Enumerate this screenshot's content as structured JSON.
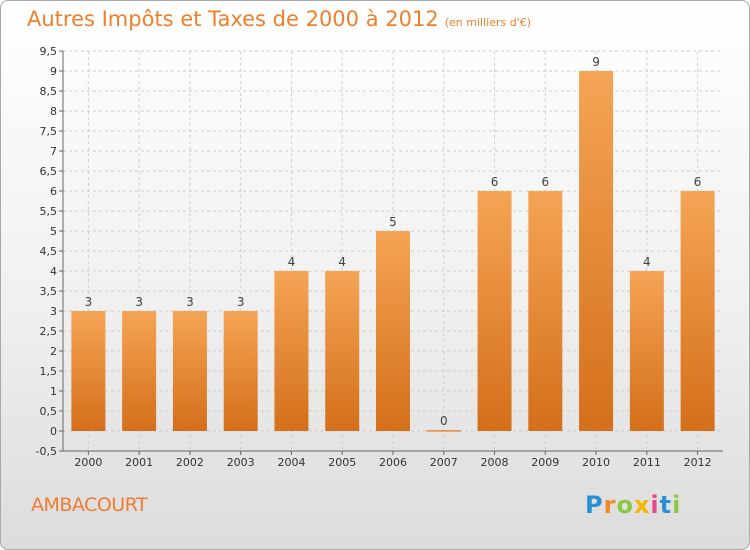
{
  "chart_data": {
    "type": "bar",
    "title": "Autres Impôts et Taxes de 2000 à 2012",
    "subtitle": "(en milliers d'€)",
    "categories": [
      "2000",
      "2001",
      "2002",
      "2003",
      "2004",
      "2005",
      "2006",
      "2007",
      "2008",
      "2009",
      "2010",
      "2011",
      "2012"
    ],
    "values": [
      3,
      3,
      3,
      3,
      4,
      4,
      5,
      0,
      6,
      6,
      9,
      4,
      6
    ],
    "data_labels": [
      "3",
      "3",
      "3",
      "3",
      "4",
      "4",
      "5",
      "0",
      "6",
      "6",
      "9",
      "4",
      "6"
    ],
    "ylim": [
      -0.5,
      9.5
    ],
    "yticks": [
      "-0,5",
      "0",
      "0,5",
      "1",
      "1,5",
      "2",
      "2,5",
      "3",
      "3,5",
      "4",
      "4,5",
      "5",
      "5,5",
      "6",
      "6,5",
      "7",
      "7,5",
      "8",
      "8,5",
      "9",
      "9,5"
    ],
    "grid": true,
    "bar_color": "#f5a455",
    "bar_color_dark": "#d46f1a"
  },
  "commune": "AMBACOURT",
  "logo": {
    "letters": [
      "P",
      "r",
      "o",
      "x",
      "i",
      "t",
      "i"
    ],
    "colors": [
      "#2a8fd4",
      "#f08a24",
      "#8dc63f",
      "#f5b800",
      "#e84a8b",
      "#2a8fd4",
      "#8dc63f"
    ]
  }
}
